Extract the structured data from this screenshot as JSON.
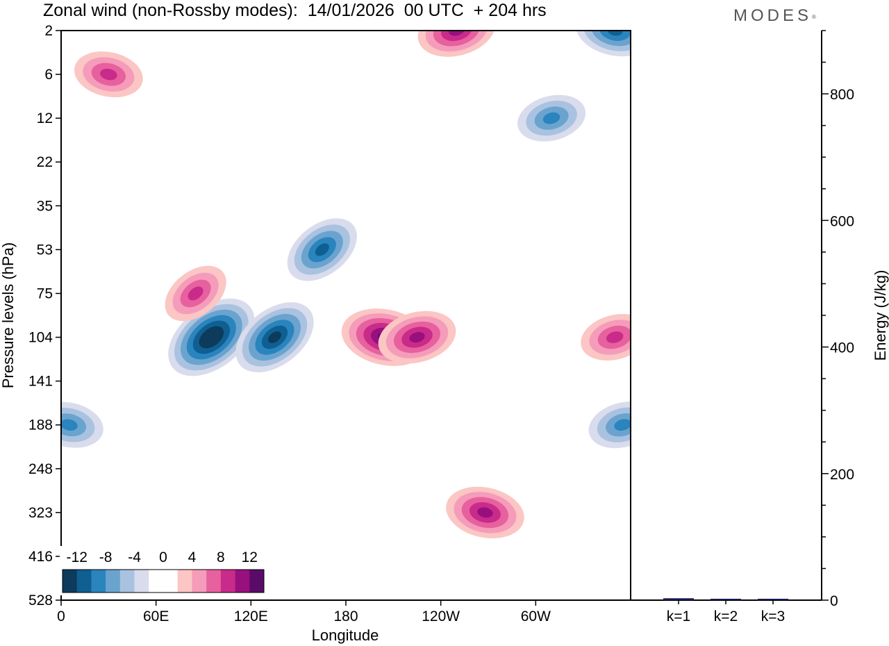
{
  "title": "Zonal wind (non-Rossby modes):  14/01/2026  00 UTC  + 204 hrs",
  "brand": "MODES",
  "brand_mark": "®",
  "colors": {
    "levels": [
      "#0d3b5c",
      "#0f5f92",
      "#2a84bd",
      "#6ba3cf",
      "#a9c2df",
      "#d9dcec",
      "#ffffff",
      "#ffffff",
      "#fbc6c4",
      "#f59cba",
      "#e7619e",
      "#c92b8a",
      "#97107d",
      "#5a0b6a"
    ],
    "frame": "#000000",
    "bar": "#1a1a5a"
  },
  "chart_data": [
    {
      "type": "heatmap",
      "title": "Zonal wind (non-Rossby modes):  14/01/2026  00 UTC  + 204 hrs",
      "xlabel": "Longitude",
      "ylabel": "Pressure levels (hPa)",
      "x_ticks": [
        "0",
        "60E",
        "120E",
        "180",
        "120W",
        "60W"
      ],
      "y_ticks": [
        "2",
        "6",
        "12",
        "22",
        "35",
        "53",
        "75",
        "104",
        "141",
        "188",
        "248",
        "323",
        "416",
        "528"
      ],
      "colorbar_labels": [
        "-12",
        "-8",
        "-4",
        "0",
        "4",
        "8",
        "12"
      ],
      "colorbar_levels": [
        -14,
        -12,
        -10,
        -8,
        -6,
        -4,
        -2,
        0,
        2,
        4,
        6,
        8,
        10,
        12,
        14
      ],
      "features": [
        {
          "lon": 95,
          "lev": 104,
          "value": -14
        },
        {
          "lon": 135,
          "lev": 104,
          "value": -13
        },
        {
          "lon": 165,
          "lev": 53,
          "value": -10
        },
        {
          "lon": 205,
          "lev": 104,
          "value": 12
        },
        {
          "lon": 225,
          "lev": 104,
          "value": 11
        },
        {
          "lon": 268,
          "lev": 323,
          "value": 10
        },
        {
          "lon": 350,
          "lev": 104,
          "value": 9
        },
        {
          "lon": 5,
          "lev": 188,
          "value": -8
        },
        {
          "lon": 355,
          "lev": 188,
          "value": -9
        },
        {
          "lon": 30,
          "lev": 6,
          "value": 9
        },
        {
          "lon": 250,
          "lev": 2,
          "value": 10
        },
        {
          "lon": 350,
          "lev": 2,
          "value": -10
        },
        {
          "lon": 310,
          "lev": 12,
          "value": -8
        },
        {
          "lon": 85,
          "lev": 75,
          "value": 9
        }
      ]
    },
    {
      "type": "bar",
      "ylabel": "Energy (J/kg)",
      "categories": [
        "k=1",
        "k=2",
        "k=3"
      ],
      "values": [
        3,
        2,
        1.5
      ],
      "ylim": [
        0,
        900
      ],
      "y_ticks": [
        "0",
        "200",
        "400",
        "600",
        "800"
      ]
    }
  ]
}
